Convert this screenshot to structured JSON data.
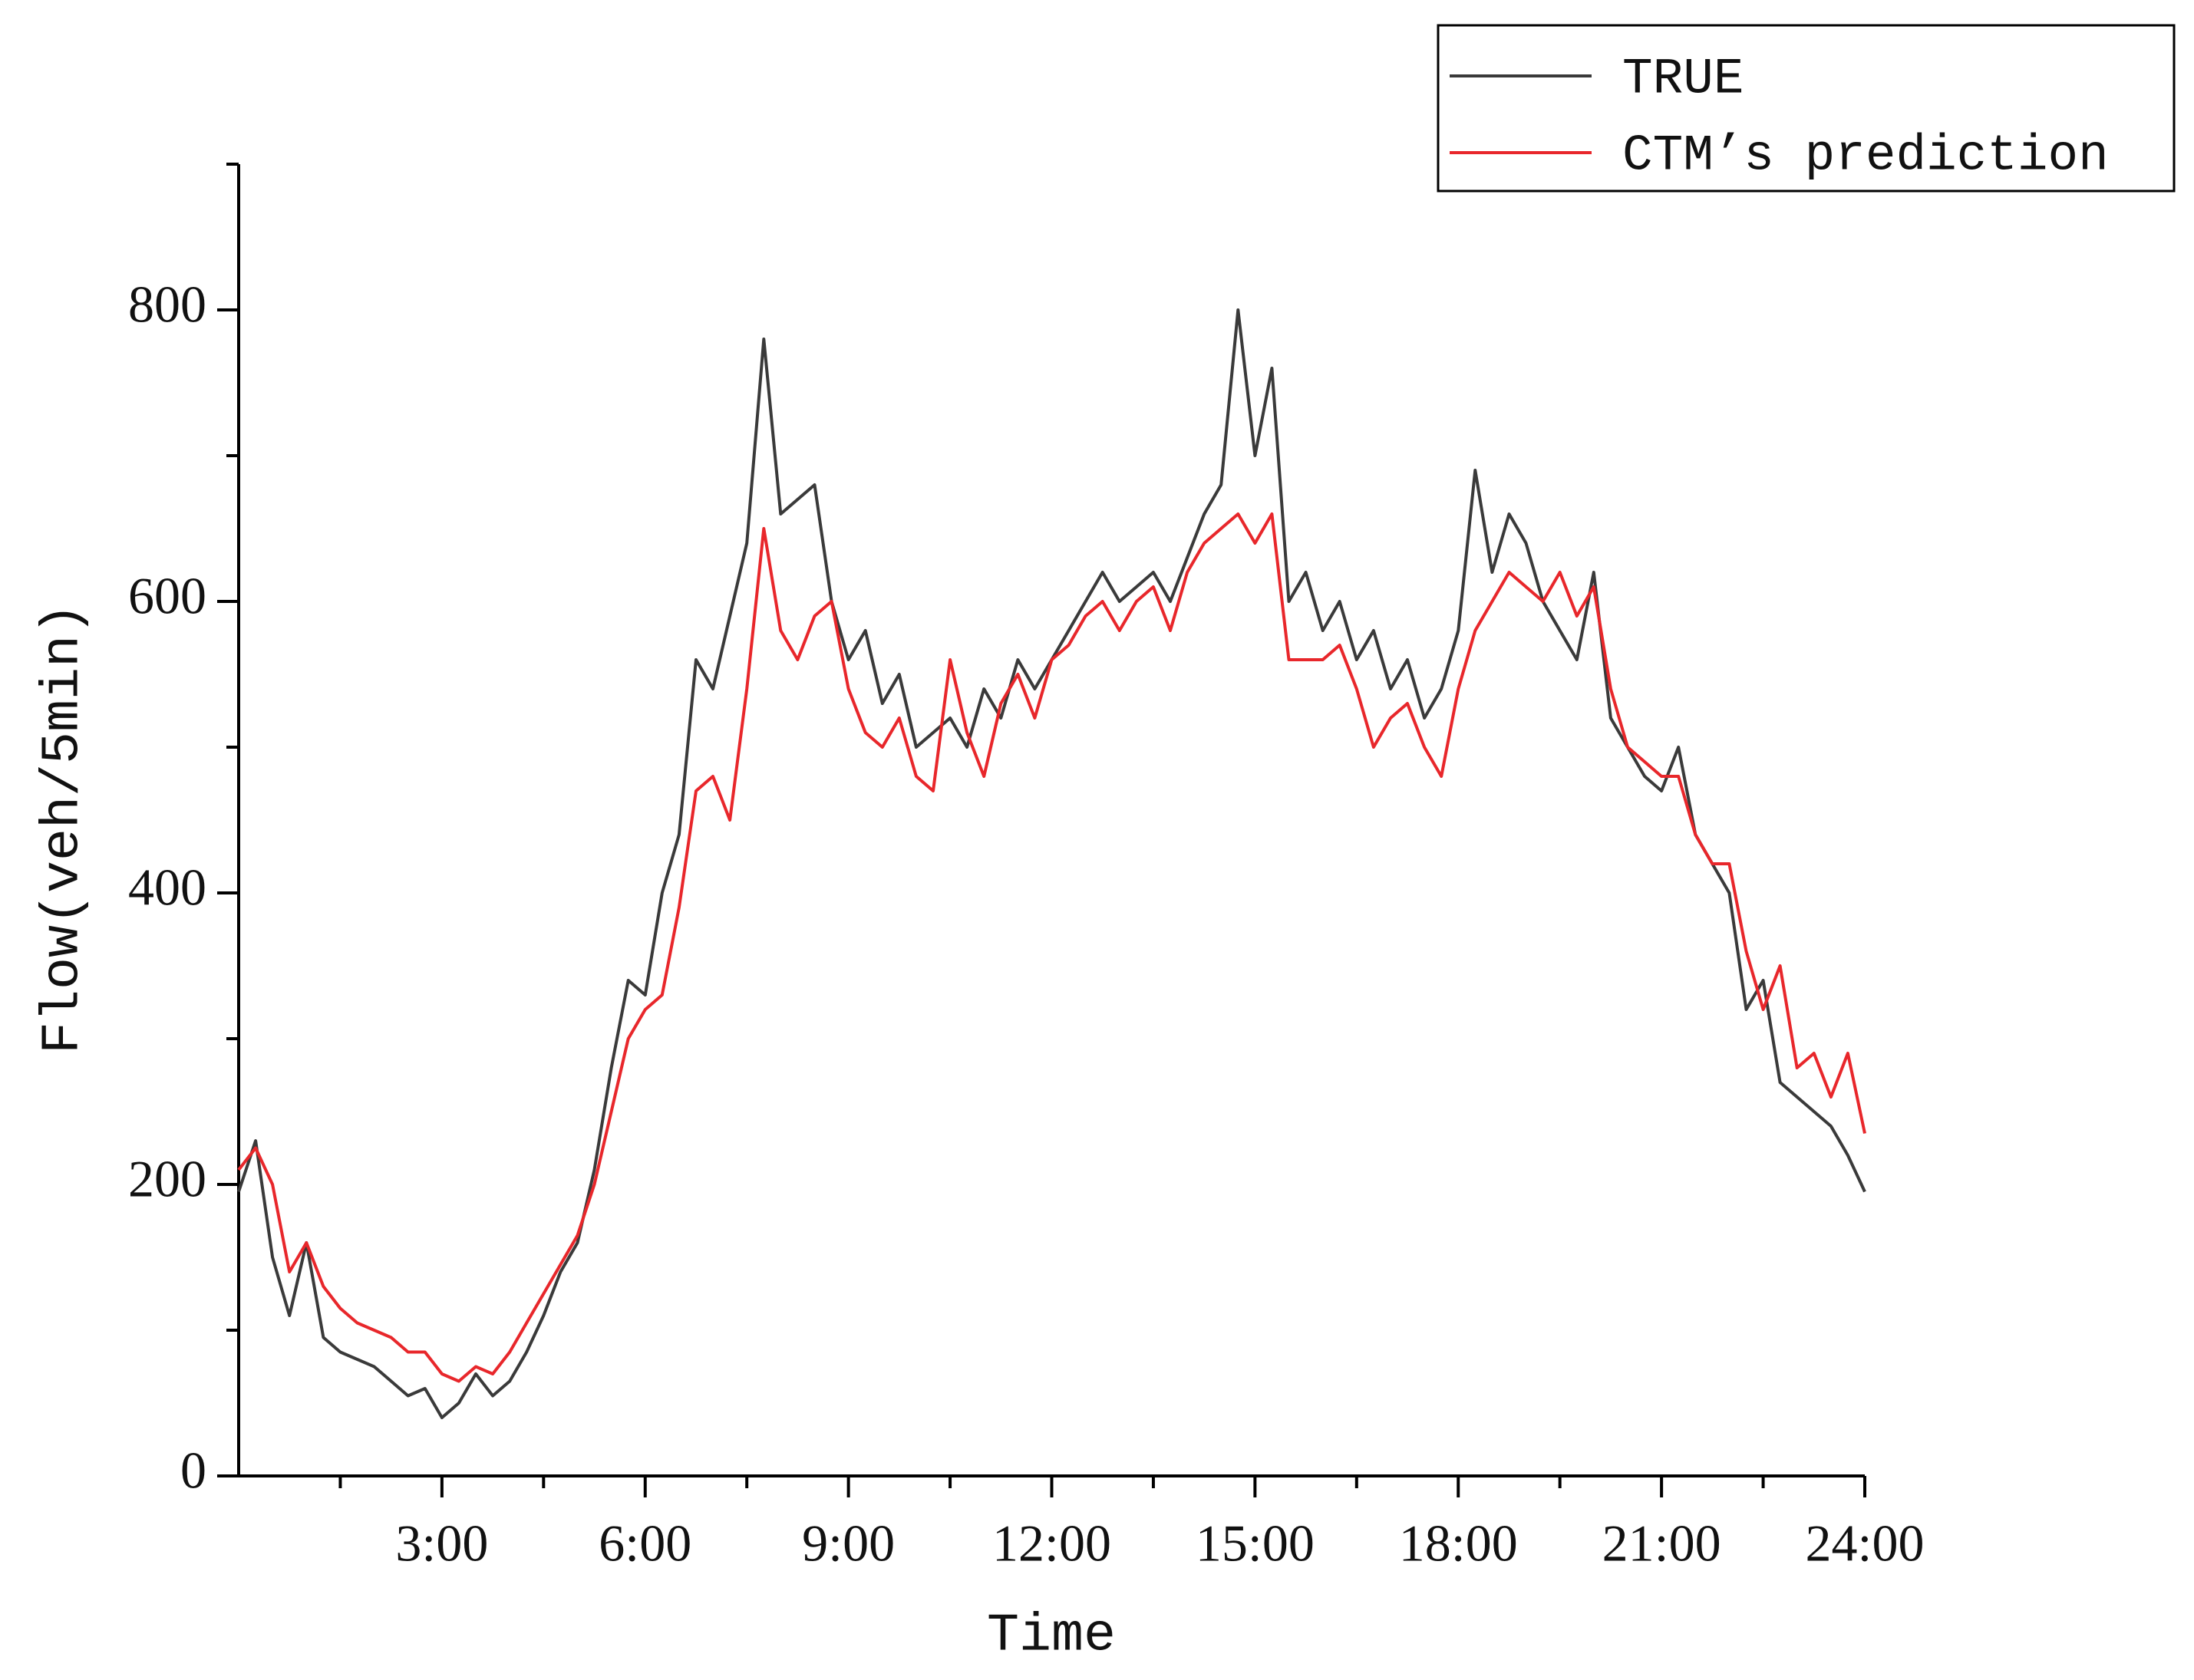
{
  "chart_data": {
    "type": "line",
    "xlabel": "Time",
    "ylabel": "Flow(veh/5min)",
    "x": [
      0,
      0.25,
      0.5,
      0.75,
      1,
      1.25,
      1.5,
      1.75,
      2,
      2.25,
      2.5,
      2.75,
      3,
      3.25,
      3.5,
      3.75,
      4,
      4.25,
      4.5,
      4.75,
      5,
      5.25,
      5.5,
      5.75,
      6,
      6.25,
      6.5,
      6.75,
      7,
      7.25,
      7.5,
      7.75,
      8,
      8.25,
      8.5,
      8.75,
      9,
      9.25,
      9.5,
      9.75,
      10,
      10.25,
      10.5,
      10.75,
      11,
      11.25,
      11.5,
      11.75,
      12,
      12.25,
      12.5,
      12.75,
      13,
      13.25,
      13.5,
      13.75,
      14,
      14.25,
      14.5,
      14.75,
      15,
      15.25,
      15.5,
      15.75,
      16,
      16.25,
      16.5,
      16.75,
      17,
      17.25,
      17.5,
      17.75,
      18,
      18.25,
      18.5,
      18.75,
      19,
      19.25,
      19.5,
      19.75,
      20,
      20.25,
      20.5,
      20.75,
      21,
      21.25,
      21.5,
      21.75,
      22,
      22.25,
      22.5,
      22.75,
      23,
      23.25,
      23.5,
      23.75,
      24
    ],
    "series": [
      {
        "name": "TRUE",
        "color": "#3a3a3a",
        "values": [
          195,
          230,
          150,
          110,
          160,
          95,
          85,
          80,
          75,
          65,
          55,
          60,
          40,
          50,
          70,
          55,
          65,
          85,
          110,
          140,
          160,
          210,
          280,
          340,
          330,
          400,
          440,
          560,
          540,
          590,
          640,
          780,
          660,
          670,
          680,
          600,
          560,
          580,
          530,
          550,
          500,
          510,
          520,
          500,
          540,
          520,
          560,
          540,
          560,
          580,
          600,
          620,
          600,
          610,
          620,
          600,
          630,
          660,
          680,
          800,
          700,
          760,
          600,
          620,
          580,
          600,
          560,
          580,
          540,
          560,
          520,
          540,
          580,
          690,
          620,
          660,
          640,
          600,
          580,
          560,
          620,
          520,
          500,
          480,
          470,
          500,
          440,
          420,
          400,
          320,
          340,
          270,
          260,
          250,
          240,
          220,
          195
        ]
      },
      {
        "name": "CTM’s prediction",
        "color": "#e8272b",
        "values": [
          210,
          225,
          200,
          140,
          160,
          130,
          115,
          105,
          100,
          95,
          85,
          85,
          70,
          65,
          75,
          70,
          85,
          105,
          125,
          145,
          165,
          200,
          250,
          300,
          320,
          330,
          390,
          470,
          480,
          450,
          540,
          650,
          580,
          560,
          590,
          600,
          540,
          510,
          500,
          520,
          480,
          470,
          560,
          510,
          480,
          530,
          550,
          520,
          560,
          570,
          590,
          600,
          580,
          600,
          610,
          580,
          620,
          640,
          650,
          660,
          640,
          660,
          560,
          560,
          560,
          570,
          540,
          500,
          520,
          530,
          500,
          480,
          540,
          580,
          600,
          620,
          610,
          600,
          620,
          590,
          610,
          540,
          500,
          490,
          480,
          480,
          440,
          420,
          420,
          360,
          320,
          350,
          280,
          290,
          260,
          290,
          235
        ]
      }
    ],
    "xlim": [
      0,
      24
    ],
    "xticks": [
      {
        "value": 3,
        "label": "3:00"
      },
      {
        "value": 6,
        "label": "6:00"
      },
      {
        "value": 9,
        "label": "9:00"
      },
      {
        "value": 12,
        "label": "12:00"
      },
      {
        "value": 15,
        "label": "15:00"
      },
      {
        "value": 18,
        "label": "18:00"
      },
      {
        "value": 21,
        "label": "21:00"
      },
      {
        "value": 24,
        "label": "24:00"
      }
    ],
    "xminorticks": [
      1.5,
      4.5,
      7.5,
      10.5,
      13.5,
      16.5,
      19.5,
      22.5
    ],
    "ylim": [
      0,
      900
    ],
    "yticks": [
      0,
      200,
      400,
      600,
      800
    ],
    "yminorticks": [
      100,
      300,
      500,
      700,
      900
    ],
    "grid": false,
    "legend": "upper right"
  }
}
